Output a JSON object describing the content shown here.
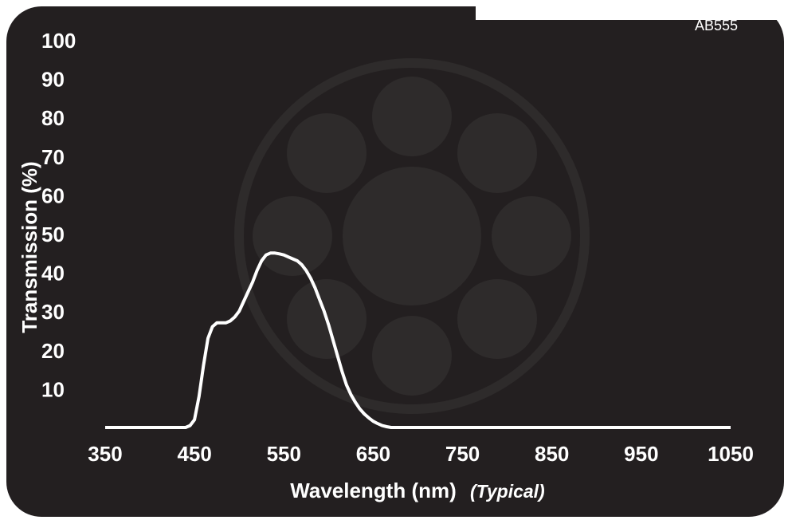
{
  "chart_data": {
    "type": "line",
    "product_code": "AB555",
    "xlabel": "Wavelength (nm)",
    "xlabel_note": "(Typical)",
    "ylabel": "Transmission (%)",
    "x_ticks": [
      350,
      450,
      550,
      650,
      750,
      850,
      950,
      1050
    ],
    "y_ticks": [
      10,
      20,
      30,
      40,
      50,
      60,
      70,
      80,
      90,
      100
    ],
    "xlim": [
      350,
      1050
    ],
    "ylim": [
      0,
      100
    ],
    "grid": false,
    "line_color": "#ffffff",
    "background_color": "#231f20",
    "series": [
      {
        "x": [
          350,
          440,
          445,
          450,
          455,
          460,
          465,
          470,
          475,
          480,
          485,
          490,
          495,
          500,
          505,
          510,
          515,
          520,
          525,
          530,
          535,
          540,
          545,
          550,
          555,
          560,
          565,
          570,
          575,
          580,
          585,
          590,
          595,
          600,
          605,
          610,
          615,
          620,
          625,
          630,
          635,
          640,
          645,
          650,
          655,
          660,
          665,
          670,
          675,
          680,
          685,
          690,
          700,
          800,
          900,
          1050
        ],
        "y": [
          0,
          0,
          0.5,
          2,
          8,
          16,
          23,
          26,
          27,
          27,
          27,
          27.5,
          28.5,
          30,
          32.5,
          35,
          37.5,
          40.5,
          43,
          44.5,
          45,
          45,
          44.8,
          44.5,
          44,
          43.5,
          43,
          42,
          40.5,
          38.5,
          36,
          33,
          30,
          26.5,
          22.5,
          18.5,
          14.5,
          11,
          8.5,
          6.5,
          4.8,
          3.5,
          2.5,
          1.6,
          1,
          0.5,
          0.2,
          0,
          0,
          0,
          0,
          0,
          0,
          0,
          0,
          0
        ]
      }
    ]
  }
}
